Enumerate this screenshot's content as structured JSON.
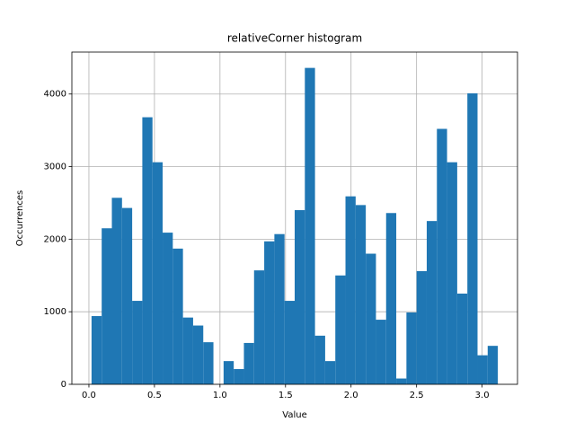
{
  "chart_data": {
    "type": "histogram",
    "title": "relativeCorner histogram",
    "x_label": "Value",
    "y_label": "Occurrences",
    "bins": [
      0.02,
      0.0975,
      0.175,
      0.2525,
      0.33,
      0.4075,
      0.485,
      0.5625,
      0.64,
      0.7175,
      0.795,
      0.8725,
      0.95,
      1.0275,
      1.105,
      1.1825,
      1.26,
      1.3375,
      1.415,
      1.4925,
      1.57,
      1.6475,
      1.725,
      1.8025,
      1.88,
      1.9575,
      2.035,
      2.1125,
      2.19,
      2.2675,
      2.345,
      2.4225,
      2.5,
      2.5775,
      2.655,
      2.7325,
      2.81,
      2.8875,
      2.965,
      3.0425,
      3.12
    ],
    "values": [
      940,
      2150,
      2570,
      2430,
      1150,
      3680,
      3060,
      2090,
      1870,
      920,
      810,
      580,
      0,
      320,
      210,
      570,
      1570,
      1970,
      2070,
      1150,
      2400,
      4360,
      670,
      320,
      1500,
      2590,
      2470,
      1800,
      890,
      2360,
      80,
      990,
      1560,
      2250,
      3520,
      3060,
      1250,
      4010,
      400,
      530
    ],
    "color": "#1f77b4",
    "xlim": [
      -0.13,
      3.27
    ],
    "ylim": [
      0,
      4578
    ],
    "xticks": [
      {
        "value": 0,
        "label": "0.0"
      },
      0.5,
      {
        "value": 1,
        "label": "1.0"
      },
      1.5,
      {
        "value": 2,
        "label": "2.0"
      },
      2.5,
      {
        "value": 3,
        "label": "3.0"
      }
    ],
    "yticks": [
      0,
      1000,
      2000,
      3000,
      4000
    ],
    "grid": true
  }
}
